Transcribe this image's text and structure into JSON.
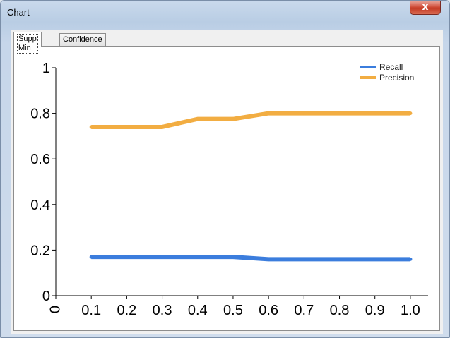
{
  "window": {
    "title": "Chart",
    "close_label": "x"
  },
  "tabs": [
    {
      "label": "Supp Min",
      "active": true
    },
    {
      "label": "Confidence",
      "active": false
    }
  ],
  "chart_data": {
    "type": "line",
    "x": [
      0.1,
      0.2,
      0.3,
      0.4,
      0.5,
      0.6,
      0.7,
      0.8,
      0.9,
      1.0
    ],
    "x_tick_labels": [
      "0",
      "0.1",
      "0.2",
      "0.3",
      "0.4",
      "0.5",
      "0.6",
      "0.7",
      "0.8",
      "0.9",
      "1.0"
    ],
    "y_tick_labels": [
      "0",
      "0.2",
      "0.4",
      "0.6",
      "0.8",
      "1"
    ],
    "y_ticks": [
      0,
      0.2,
      0.4,
      0.6,
      0.8,
      1
    ],
    "ylim": [
      0,
      1
    ],
    "xlim": [
      0,
      1.05
    ],
    "grid": false,
    "legend_position": "top-right",
    "series": [
      {
        "name": "Recall",
        "color": "#3b7ddd",
        "values": [
          0.17,
          0.17,
          0.17,
          0.17,
          0.17,
          0.16,
          0.16,
          0.16,
          0.16,
          0.16
        ]
      },
      {
        "name": "Precision",
        "color": "#f2ad42",
        "values": [
          0.74,
          0.74,
          0.74,
          0.775,
          0.775,
          0.8,
          0.8,
          0.8,
          0.8,
          0.8
        ]
      }
    ]
  }
}
